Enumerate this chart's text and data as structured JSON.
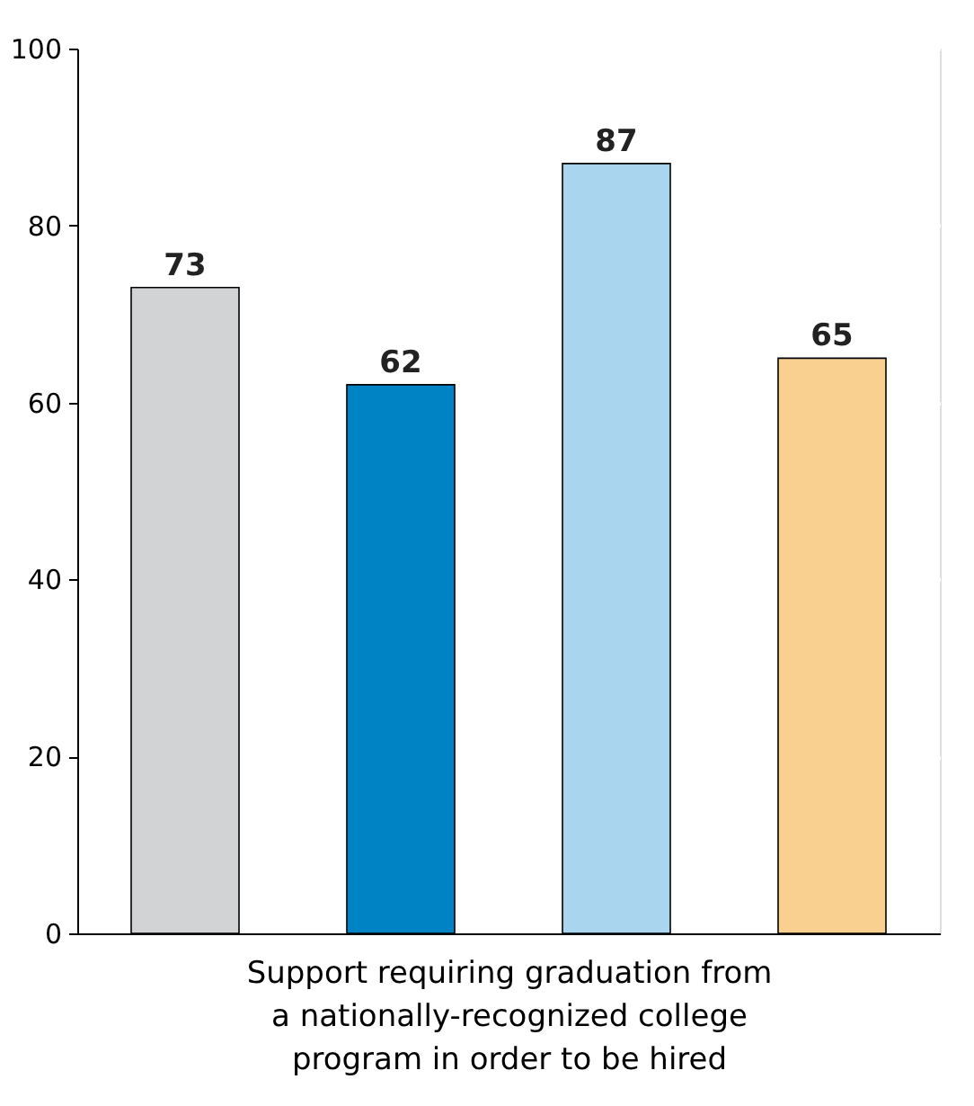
{
  "chart_data": {
    "type": "bar",
    "xlabel": "Support requiring graduation from\na nationally-recognized college\nprogram in order to be hired",
    "categories": [
      null,
      null,
      null,
      null
    ],
    "values": [
      73,
      62,
      87,
      65
    ],
    "colors": [
      "#d1d3d5",
      "#0083c4",
      "#a9d5ef",
      "#f9d090"
    ],
    "ylim": [
      0,
      100
    ],
    "yticks": [
      0,
      20,
      40,
      60,
      80,
      100
    ],
    "grid": "y",
    "data_labels": true
  }
}
